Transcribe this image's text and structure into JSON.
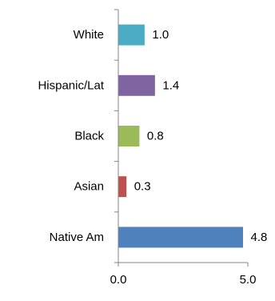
{
  "chart_data": {
    "type": "bar",
    "orientation": "horizontal",
    "categories": [
      "White",
      "Hispanic/Lat",
      "Black",
      "Asian",
      "Native Am"
    ],
    "values": [
      1.0,
      1.4,
      0.8,
      0.3,
      4.8
    ],
    "value_labels": [
      "1.0",
      "1.4",
      "0.8",
      "0.3",
      "4.8"
    ],
    "colors": [
      "#4bacc6",
      "#8064a2",
      "#9bbb59",
      "#c0504d",
      "#4f81bd"
    ],
    "x_ticks": [
      "0.0",
      "5.0"
    ],
    "xlim": [
      0,
      5
    ],
    "grid": false,
    "legend": "none"
  }
}
